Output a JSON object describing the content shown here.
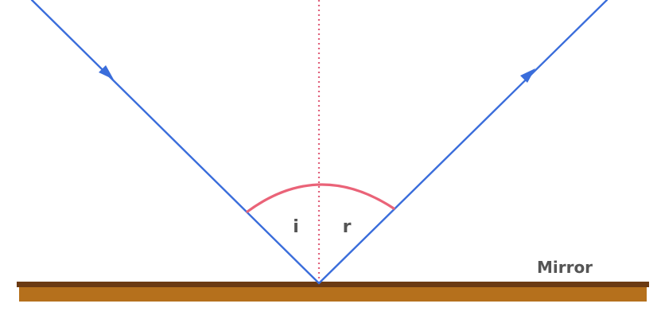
{
  "labels": {
    "angle_incidence": "i",
    "angle_reflection": "r",
    "mirror": "Mirror"
  },
  "colors": {
    "ray": "#3a6ddb",
    "normal": "#e0607a",
    "angle_arc": "#ea6378",
    "mirror_top": "#6b3a12",
    "mirror_body": "#b5701c",
    "text": "#555555"
  }
}
